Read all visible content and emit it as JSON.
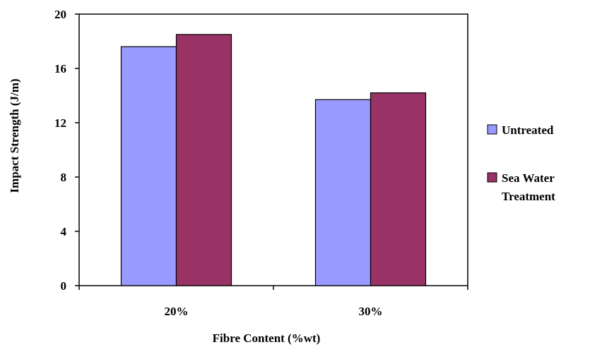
{
  "chart_data": {
    "type": "bar",
    "categories": [
      "20%",
      "30%"
    ],
    "series": [
      {
        "name": "Untreated",
        "values": [
          17.6,
          13.7
        ],
        "color": "#9999ff"
      },
      {
        "name": "Sea Water Treatment",
        "name_lines": [
          "Sea Water",
          "Treatment"
        ],
        "values": [
          18.5,
          14.2
        ],
        "color": "#993366"
      }
    ],
    "xlabel": "Fibre Content (%wt)",
    "ylabel": "Impact Strength (J/m)",
    "ylim": [
      0,
      20
    ],
    "yticks": [
      0,
      4,
      8,
      12,
      16,
      20
    ],
    "grid": false,
    "legend": "right"
  }
}
